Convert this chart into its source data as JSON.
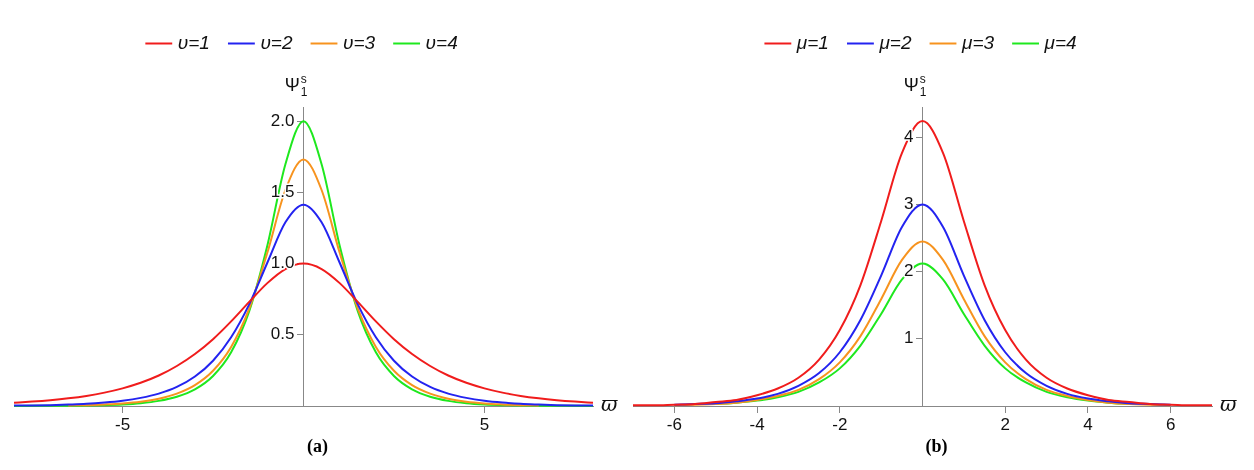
{
  "chart_data": [
    {
      "type": "line",
      "xlabel": "ϖ",
      "ylabel": "Ψ$_{1}$$^{s}$",
      "legend": "top",
      "annotations": [
        "(a)"
      ],
      "xlim": [
        -8,
        8
      ],
      "ylim": [
        0,
        2.1
      ],
      "xticks": [
        -5,
        5
      ],
      "yticks": [
        0.5,
        {
          "value": 1,
          "label": "1.0"
        },
        1.5,
        {
          "value": 2,
          "label": "2.0"
        }
      ],
      "x": [
        -8,
        -7.5,
        -7,
        -6.5,
        -6,
        -5.5,
        -5,
        -4.5,
        -4,
        -3.5,
        -3,
        -2.5,
        -2,
        -1.5,
        -1,
        -0.5,
        0,
        0.5,
        1,
        1.5,
        2,
        2.5,
        3,
        3.5,
        4,
        4.5,
        5,
        5.5,
        6,
        6.5,
        7,
        7.5,
        8
      ],
      "series": [
        {
          "name": "υ=1",
          "color": "#f01c1c",
          "values": [
            0.023,
            0.031,
            0.041,
            0.054,
            0.071,
            0.094,
            0.124,
            0.163,
            0.214,
            0.281,
            0.365,
            0.469,
            0.594,
            0.731,
            0.863,
            0.962,
            1,
            0.962,
            0.863,
            0.731,
            0.594,
            0.469,
            0.365,
            0.281,
            0.214,
            0.163,
            0.124,
            0.094,
            0.071,
            0.054,
            0.041,
            0.031,
            0.023
          ]
        },
        {
          "name": "υ=2",
          "color": "#2323f0",
          "values": [
            0.003,
            0.004,
            0.006,
            0.01,
            0.015,
            0.024,
            0.037,
            0.057,
            0.087,
            0.134,
            0.207,
            0.318,
            0.483,
            0.714,
            1.006,
            1.29,
            1.414,
            1.29,
            1.006,
            0.714,
            0.483,
            0.318,
            0.207,
            0.134,
            0.087,
            0.057,
            0.037,
            0.024,
            0.015,
            0.01,
            0.006,
            0.004,
            0.003
          ]
        },
        {
          "name": "υ=3",
          "color": "#f7931e",
          "values": [
            null,
            null,
            null,
            0.004,
            0.006,
            0.011,
            0.018,
            0.03,
            0.051,
            0.087,
            0.147,
            0.248,
            0.415,
            0.684,
            1.076,
            1.517,
            1.732,
            1.517,
            1.076,
            0.684,
            0.415,
            0.248,
            0.147,
            0.087,
            0.051,
            0.03,
            0.018,
            0.011,
            0.006,
            0.004,
            null,
            null,
            null
          ]
        },
        {
          "name": "υ=4",
          "color": "#1ee81e",
          "values": [
            0,
            0.001,
            0.001,
            0.002,
            0.003,
            0.006,
            0.011,
            0.02,
            0.036,
            0.065,
            0.117,
            0.211,
            0.377,
            0.666,
            1.126,
            1.698,
            2,
            1.698,
            1.126,
            0.666,
            0.377,
            0.211,
            0.117,
            0.065,
            0.036,
            0.02,
            0.011,
            0.006,
            0.003,
            0.002,
            0.001,
            0.001,
            0
          ]
        }
      ]
    },
    {
      "type": "line",
      "xlabel": "ϖ",
      "ylabel": "Ψ$_{1}$$^{s}$",
      "legend": "top",
      "annotations": [
        "(b)"
      ],
      "xlim": [
        -7,
        7
      ],
      "ylim": [
        0,
        4.45
      ],
      "xticks": [
        -6,
        -4,
        -2,
        2,
        4,
        6
      ],
      "yticks": [
        1,
        2,
        3,
        4
      ],
      "x": [
        -7,
        -6.5,
        -6,
        -5.5,
        -5,
        -4.5,
        -4,
        -3.5,
        -3,
        -2.5,
        -2,
        -1.5,
        -1,
        -0.5,
        0,
        0.5,
        1,
        1.5,
        2,
        2.5,
        3,
        3.5,
        4,
        4.5,
        5,
        5.5,
        6,
        6.5,
        7
      ],
      "series": [
        {
          "name": "μ=1",
          "color": "#f01c1c",
          "values": [
            0.01,
            0.01,
            0.02,
            0.03,
            0.06,
            0.09,
            0.16,
            0.26,
            0.42,
            0.69,
            1.13,
            1.8,
            2.75,
            3.76,
            4.24,
            3.76,
            2.75,
            1.8,
            1.13,
            0.69,
            0.42,
            0.26,
            0.16,
            0.09,
            0.06,
            0.03,
            0.02,
            0.01,
            0.01
          ]
        },
        {
          "name": "μ=2",
          "color": "#2323f0",
          "values": [
            null,
            null,
            0.02,
            0.03,
            0.04,
            0.07,
            0.11,
            0.18,
            0.3,
            0.49,
            0.8,
            1.28,
            1.94,
            2.66,
            3,
            2.66,
            1.94,
            1.28,
            0.8,
            0.49,
            0.3,
            0.18,
            0.11,
            0.07,
            0.04,
            0.03,
            0.02,
            null,
            null
          ]
        },
        {
          "name": "μ=3",
          "color": "#f7931e",
          "values": [
            null,
            null,
            0.01,
            0.02,
            0.03,
            0.05,
            0.09,
            0.15,
            0.24,
            0.4,
            0.65,
            1.04,
            1.59,
            2.17,
            2.45,
            2.17,
            1.59,
            1.04,
            0.65,
            0.4,
            0.24,
            0.15,
            0.09,
            0.05,
            0.03,
            0.02,
            0.01,
            null,
            null
          ]
        },
        {
          "name": "μ=4",
          "color": "#1ee81e",
          "values": [
            null,
            null,
            null,
            null,
            0.03,
            0.05,
            0.08,
            0.13,
            0.21,
            0.35,
            0.56,
            0.9,
            1.37,
            1.88,
            2.12,
            1.88,
            1.37,
            0.9,
            0.56,
            0.35,
            0.21,
            0.13,
            0.08,
            0.05,
            0.03,
            null,
            null,
            null,
            null
          ]
        }
      ]
    }
  ]
}
